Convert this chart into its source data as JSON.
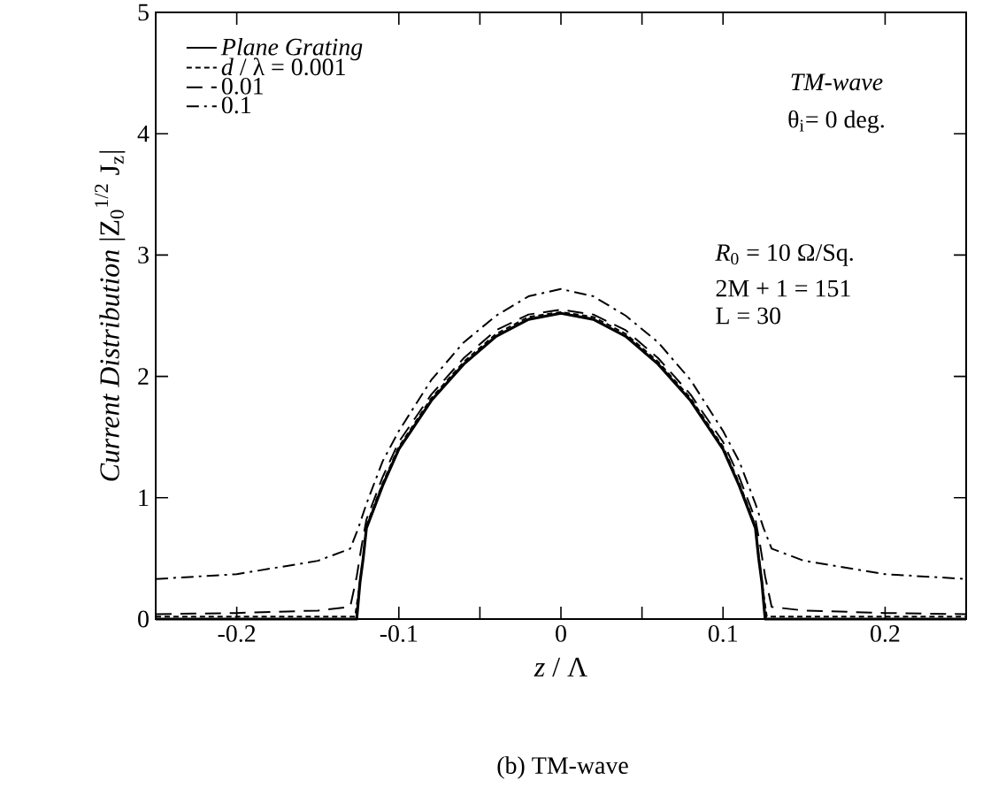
{
  "chart_data": {
    "type": "line",
    "xlabel": "*z* / Λ",
    "ylabel": "*Current Distribution*    |Z$_{0}$$^{1/2}$ J$_{z}$|",
    "xlim": [
      -0.25,
      0.25
    ],
    "ylim": [
      0,
      5
    ],
    "xticks": [
      -0.2,
      -0.1,
      0,
      0.1,
      0.2,
      {
        "value": -0.05,
        "label": null
      },
      {
        "value": 0.05,
        "label": null
      }
    ],
    "yticks": [
      0,
      1,
      2,
      3,
      4,
      5
    ],
    "legend": "top left",
    "marker": "none",
    "grid": false,
    "annotations": [
      "*TM-wave*",
      "θ$_{i}$= 0 deg.",
      "*R*$_{0}$ = 10 Ω/Sq.",
      "2M + 1 = 151",
      "L = 30",
      "(b) TM-wave"
    ],
    "series": [
      {
        "name": "*Plane Grating*",
        "color": "#000000",
        "line_style": "solid",
        "x": [
          -0.25,
          -0.2,
          -0.15,
          -0.126,
          -0.124,
          -0.122,
          -0.12,
          -0.11,
          -0.1,
          -0.08,
          -0.06,
          -0.04,
          -0.02,
          0,
          0.02,
          0.04,
          0.06,
          0.08,
          0.1,
          0.11,
          0.12,
          0.122,
          0.124,
          0.126,
          0.15,
          0.2,
          0.25
        ],
        "values": [
          0,
          0,
          0,
          0,
          0.3,
          0.5,
          0.75,
          1.1,
          1.4,
          1.8,
          2.1,
          2.33,
          2.47,
          2.52,
          2.47,
          2.33,
          2.1,
          1.8,
          1.4,
          1.1,
          0.75,
          0.5,
          0.3,
          0,
          0,
          0,
          0
        ]
      },
      {
        "name": "*d* / λ = 0.001",
        "color": "#000000",
        "line_style": "dotted",
        "x": [
          -0.25,
          -0.2,
          -0.15,
          -0.127,
          -0.124,
          -0.122,
          -0.12,
          -0.11,
          -0.1,
          -0.08,
          -0.06,
          -0.04,
          -0.02,
          0,
          0.02,
          0.04,
          0.06,
          0.08,
          0.1,
          0.11,
          0.12,
          0.122,
          0.124,
          0.127,
          0.15,
          0.2,
          0.25
        ],
        "values": [
          0.02,
          0.02,
          0.02,
          0.02,
          0.3,
          0.52,
          0.77,
          1.12,
          1.42,
          1.82,
          2.12,
          2.35,
          2.49,
          2.53,
          2.49,
          2.35,
          2.12,
          1.82,
          1.42,
          1.12,
          0.77,
          0.52,
          0.3,
          0.02,
          0.02,
          0.02,
          0.02
        ]
      },
      {
        "name": "0.01",
        "color": "#000000",
        "line_style": "dashed",
        "x": [
          -0.25,
          -0.2,
          -0.15,
          -0.13,
          -0.126,
          -0.123,
          -0.12,
          -0.11,
          -0.1,
          -0.08,
          -0.06,
          -0.04,
          -0.02,
          0,
          0.02,
          0.04,
          0.06,
          0.08,
          0.1,
          0.11,
          0.12,
          0.123,
          0.126,
          0.13,
          0.15,
          0.2,
          0.25
        ],
        "values": [
          0.04,
          0.05,
          0.07,
          0.1,
          0.35,
          0.6,
          0.82,
          1.17,
          1.46,
          1.85,
          2.15,
          2.38,
          2.51,
          2.55,
          2.51,
          2.38,
          2.15,
          1.85,
          1.46,
          1.17,
          0.82,
          0.6,
          0.35,
          0.1,
          0.07,
          0.05,
          0.04
        ]
      },
      {
        "name": "0.1",
        "color": "#000000",
        "line_style": "dashdot",
        "x": [
          -0.25,
          -0.2,
          -0.15,
          -0.13,
          -0.125,
          -0.12,
          -0.11,
          -0.1,
          -0.08,
          -0.06,
          -0.04,
          -0.02,
          0,
          0.02,
          0.04,
          0.06,
          0.08,
          0.1,
          0.11,
          0.12,
          0.125,
          0.13,
          0.15,
          0.2,
          0.25
        ],
        "values": [
          0.33,
          0.37,
          0.48,
          0.58,
          0.75,
          0.95,
          1.3,
          1.55,
          1.97,
          2.28,
          2.5,
          2.66,
          2.72,
          2.66,
          2.5,
          2.28,
          1.97,
          1.55,
          1.3,
          0.95,
          0.75,
          0.58,
          0.48,
          0.37,
          0.33
        ]
      }
    ]
  }
}
